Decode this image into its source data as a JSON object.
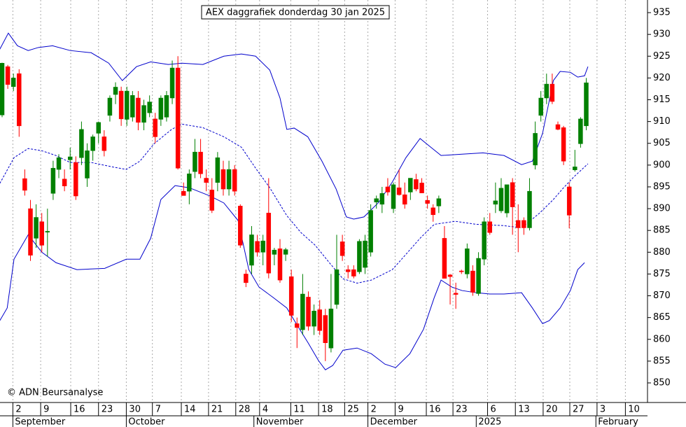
{
  "chart_data": {
    "type": "candlestick",
    "title": "AEX daggrafiek donderdag 30 jan 2025",
    "copyright": "© ADN Beursanalyse",
    "xlim": [
      -0.37,
      113.8
    ],
    "ylim": [
      845.5,
      937.9
    ],
    "yticks": [
      850,
      855,
      860,
      865,
      870,
      875,
      880,
      885,
      890,
      895,
      900,
      905,
      910,
      915,
      920,
      925,
      930,
      935
    ],
    "grid": true,
    "xticks": [
      {
        "value": 1.9,
        "label": "2"
      },
      {
        "value": 6.8,
        "label": "9"
      },
      {
        "value": 12.1,
        "label": "16"
      },
      {
        "value": 17.0,
        "label": "23"
      },
      {
        "value": 21.9,
        "label": "30"
      },
      {
        "value": 26.5,
        "label": "7"
      },
      {
        "value": 31.6,
        "label": "14"
      },
      {
        "value": 36.4,
        "label": "21"
      },
      {
        "value": 41.2,
        "label": "28"
      },
      {
        "value": 45.4,
        "label": "4"
      },
      {
        "value": 50.9,
        "label": "11"
      },
      {
        "value": 55.8,
        "label": "18"
      },
      {
        "value": 60.4,
        "label": "25"
      },
      {
        "value": 64.5,
        "label": "2"
      },
      {
        "value": 69.3,
        "label": "9"
      },
      {
        "value": 74.8,
        "label": "16"
      },
      {
        "value": 79.5,
        "label": "23"
      },
      {
        "value": 85.6,
        "label": "6"
      },
      {
        "value": 90.5,
        "label": "13"
      },
      {
        "value": 95.4,
        "label": "20"
      },
      {
        "value": 100.1,
        "label": "27"
      },
      {
        "value": 104.9,
        "label": "3"
      },
      {
        "value": 109.9,
        "label": "10"
      }
    ],
    "months": [
      {
        "value": 1.9,
        "label": "September"
      },
      {
        "value": 21.9,
        "label": "October"
      },
      {
        "value": 44.4,
        "label": "November"
      },
      {
        "value": 64.5,
        "label": "December"
      },
      {
        "value": 83.6,
        "label": "2025"
      },
      {
        "value": 104.7,
        "label": "February"
      }
    ],
    "up_color": "#008000",
    "down_color": "#ff0000",
    "candles": {
      "open": [
        911.5,
        922.6,
        918,
        921,
        896.9,
        890,
        883.2,
        887,
        884.6,
        893.5,
        899,
        896.8,
        901.2,
        900.6,
        901.7,
        897,
        903.3,
        907.3,
        906.5,
        911.4,
        916.2,
        917,
        910.5,
        911,
        915.4,
        909.8,
        912,
        910.6,
        910.5,
        911,
        915.4,
        922.3,
        894,
        894,
        898.5,
        903,
        897,
        894.3,
        896,
        899,
        894.5,
        899,
        890.6,
        875,
        877,
        882.5,
        880,
        889,
        879.5,
        880.8,
        879.5,
        874.4,
        863.6,
        862.2,
        869.7,
        863,
        866.8,
        865.5,
        858,
        868,
        882.4,
        876,
        876,
        875.5,
        876.5,
        880,
        891.5,
        891,
        895,
        890,
        894.8,
        893.2,
        893.8,
        896.7,
        895.9,
        891.9,
        890.2,
        890.6,
        883.2,
        874.8,
        870.6,
        875.7,
        875,
        875.7,
        870.5,
        878.4,
        887,
        891,
        889.5,
        889,
        896,
        887.3,
        887.3,
        885.6,
        900,
        911.4,
        915.4,
        918.6,
        909.3,
        908.6,
        895,
        898.9,
        904.9,
        909
      ],
      "high": [
        923.5,
        923,
        921,
        922,
        899,
        892,
        891,
        889,
        890,
        901,
        902.5,
        899,
        904,
        902,
        910,
        905,
        907,
        910,
        908,
        916,
        919,
        918,
        918,
        917,
        917,
        915,
        916,
        912,
        916,
        917,
        924,
        925,
        896,
        899,
        906,
        906,
        899,
        897,
        903,
        901,
        901,
        900,
        891,
        876,
        886,
        884,
        884,
        897,
        881,
        883,
        881,
        876,
        865,
        875,
        871,
        868,
        869,
        867,
        875,
        884,
        884,
        877,
        877,
        883,
        884,
        891,
        893,
        895,
        897,
        896,
        899,
        896,
        897,
        898,
        897,
        893,
        891,
        893,
        886,
        875,
        873,
        876,
        882,
        877,
        880,
        888,
        889,
        896,
        897,
        895,
        897,
        891,
        888,
        897,
        910,
        917,
        921,
        921,
        910,
        909,
        896,
        903.5,
        911,
        920
      ],
      "low": [
        911,
        917.5,
        917,
        906.5,
        893,
        878,
        881,
        880,
        879,
        892,
        897,
        894,
        899,
        892,
        900,
        895,
        901,
        905,
        902,
        910,
        914,
        909,
        909,
        910,
        908,
        908,
        911,
        905,
        909,
        910,
        914,
        899,
        893,
        891,
        897,
        897,
        894,
        889,
        894,
        893,
        893,
        893,
        881,
        872,
        875,
        879,
        877,
        874,
        877,
        873,
        878,
        864,
        858,
        861,
        862,
        861,
        861,
        855,
        857,
        867,
        878,
        874,
        874,
        875,
        875,
        879,
        890,
        889,
        893,
        889,
        893,
        890,
        892,
        894,
        894,
        890,
        887,
        889,
        874,
        868,
        867,
        875,
        874,
        870,
        870,
        877,
        884,
        889,
        889,
        888,
        884,
        880,
        884,
        885,
        899,
        910,
        914,
        914,
        908,
        900,
        885.5,
        898.5,
        904,
        908
      ],
      "close": [
        923.4,
        918.5,
        920,
        909,
        894.2,
        879.3,
        888,
        881.6,
        884.8,
        899.3,
        901.7,
        895.2,
        901.9,
        892.9,
        908.2,
        903.3,
        906.5,
        909.8,
        903.3,
        915.4,
        917.9,
        910.6,
        917,
        916,
        909.8,
        913.7,
        914.5,
        906.5,
        915.4,
        916,
        922.3,
        899.3,
        893,
        898,
        903,
        898,
        896,
        889.6,
        901.7,
        894.5,
        899,
        894,
        881.6,
        873,
        884,
        880,
        882.6,
        875.2,
        880.5,
        873.6,
        880.6,
        865.5,
        862.7,
        870.4,
        863,
        866.5,
        862,
        859.2,
        867,
        876,
        879.2,
        875.5,
        874.5,
        882.5,
        882.6,
        889.6,
        892.3,
        893.5,
        893.8,
        895.5,
        893.2,
        891,
        897,
        894.5,
        893.6,
        891.2,
        888.6,
        892.3,
        874,
        874.4,
        870.3,
        875.5,
        880.8,
        870.8,
        878.6,
        887,
        884.5,
        891.8,
        894.7,
        895.5,
        890.4,
        885.6,
        885.6,
        894,
        907.3,
        915.4,
        918.6,
        914.6,
        908.2,
        900.9,
        888.5,
        899.6,
        910.6,
        918.9
      ]
    },
    "bands": [
      {
        "style": "solid",
        "color": "#0000cc",
        "x": [
          -0.4,
          1.1,
          2.7,
          4.6,
          6.4,
          8.9,
          12.0,
          15.7,
          18.8,
          21.2,
          23.7,
          26.2,
          29.3,
          31.7,
          35.4,
          39.1,
          42.2,
          44.7,
          47.2,
          49.0,
          50.2,
          51.5,
          53.9,
          56.4,
          58.9,
          60.7,
          62.0,
          63.8,
          66.3,
          68.8,
          71.2,
          73.7,
          75.6,
          77.4,
          81.1,
          84.8,
          88.5,
          91.6,
          93.5,
          95.3,
          97.2,
          98.4,
          100.2,
          101.5,
          102.7,
          103.3
        ],
        "values": [
          926.6,
          930.3,
          927.4,
          926.3,
          927.0,
          927.4,
          926.3,
          925.8,
          923.4,
          919.4,
          922.6,
          923.7,
          923.1,
          923.4,
          923.1,
          925.0,
          925.5,
          925.0,
          921.8,
          915.4,
          908.2,
          908.5,
          906.5,
          900.9,
          894.5,
          888.1,
          887.6,
          888.1,
          891.3,
          896.1,
          901.7,
          906.1,
          904.1,
          902.2,
          902.5,
          902.8,
          902.2,
          900.1,
          900.9,
          907.3,
          919.4,
          921.5,
          921.3,
          920.2,
          920.5,
          922.6
        ]
      },
      {
        "style": "dashed",
        "color": "#0000cc",
        "x": [
          -0.4,
          2.1,
          4.6,
          7.0,
          9.5,
          12.0,
          15.7,
          19.4,
          21.9,
          24.3,
          26.8,
          29.9,
          31.7,
          35.4,
          39.1,
          42.2,
          44.7,
          47.2,
          50.2,
          52.7,
          55.2,
          57.7,
          60.1,
          62.6,
          65.1,
          68.8,
          71.2,
          73.7,
          76.2,
          79.9,
          83.6,
          88.5,
          91.6,
          94.7,
          97.2,
          99.0,
          100.9,
          103.3
        ],
        "values": [
          895.8,
          901.7,
          903.8,
          903.3,
          902.2,
          900.6,
          900.6,
          899.6,
          899.0,
          900.9,
          904.9,
          908.2,
          909.4,
          908.6,
          906.5,
          904.1,
          899.3,
          894.8,
          888.4,
          884.5,
          881.6,
          877.6,
          873.9,
          872.9,
          873.6,
          876.0,
          879.5,
          883.2,
          886.4,
          887.1,
          886.4,
          886.1,
          885.6,
          888.9,
          892.1,
          894.8,
          897.4,
          900.3
        ]
      },
      {
        "style": "solid",
        "color": "#0000cc",
        "x": [
          -0.4,
          0.9,
          2.1,
          4.6,
          7.0,
          9.5,
          13.2,
          18.1,
          21.9,
          24.3,
          26.2,
          28.0,
          30.5,
          33.0,
          36.7,
          39.1,
          41.6,
          43.5,
          45.3,
          47.8,
          50.2,
          52.1,
          54.0,
          55.8,
          57.0,
          58.3,
          60.1,
          62.6,
          65.1,
          67.5,
          69.4,
          71.9,
          74.3,
          76.2,
          77.4,
          79.3,
          81.1,
          83.6,
          86.0,
          88.5,
          91.6,
          93.5,
          95.3,
          96.5,
          98.4,
          100.2,
          101.5,
          102.7
        ],
        "values": [
          864.3,
          867.2,
          878.4,
          884.0,
          880.0,
          877.6,
          876.0,
          876.3,
          878.4,
          878.4,
          883.2,
          892.1,
          895.3,
          894.8,
          892.9,
          891.3,
          887.3,
          876.0,
          872.0,
          869.6,
          867.2,
          863.1,
          859.1,
          855.1,
          853.0,
          854.0,
          857.5,
          858.0,
          856.7,
          854.3,
          853.5,
          856.7,
          862.3,
          869.6,
          873.6,
          872.0,
          871.2,
          870.7,
          870.4,
          870.4,
          870.7,
          867.2,
          863.6,
          864.3,
          867.2,
          871.2,
          876.0,
          877.6
        ]
      }
    ]
  }
}
